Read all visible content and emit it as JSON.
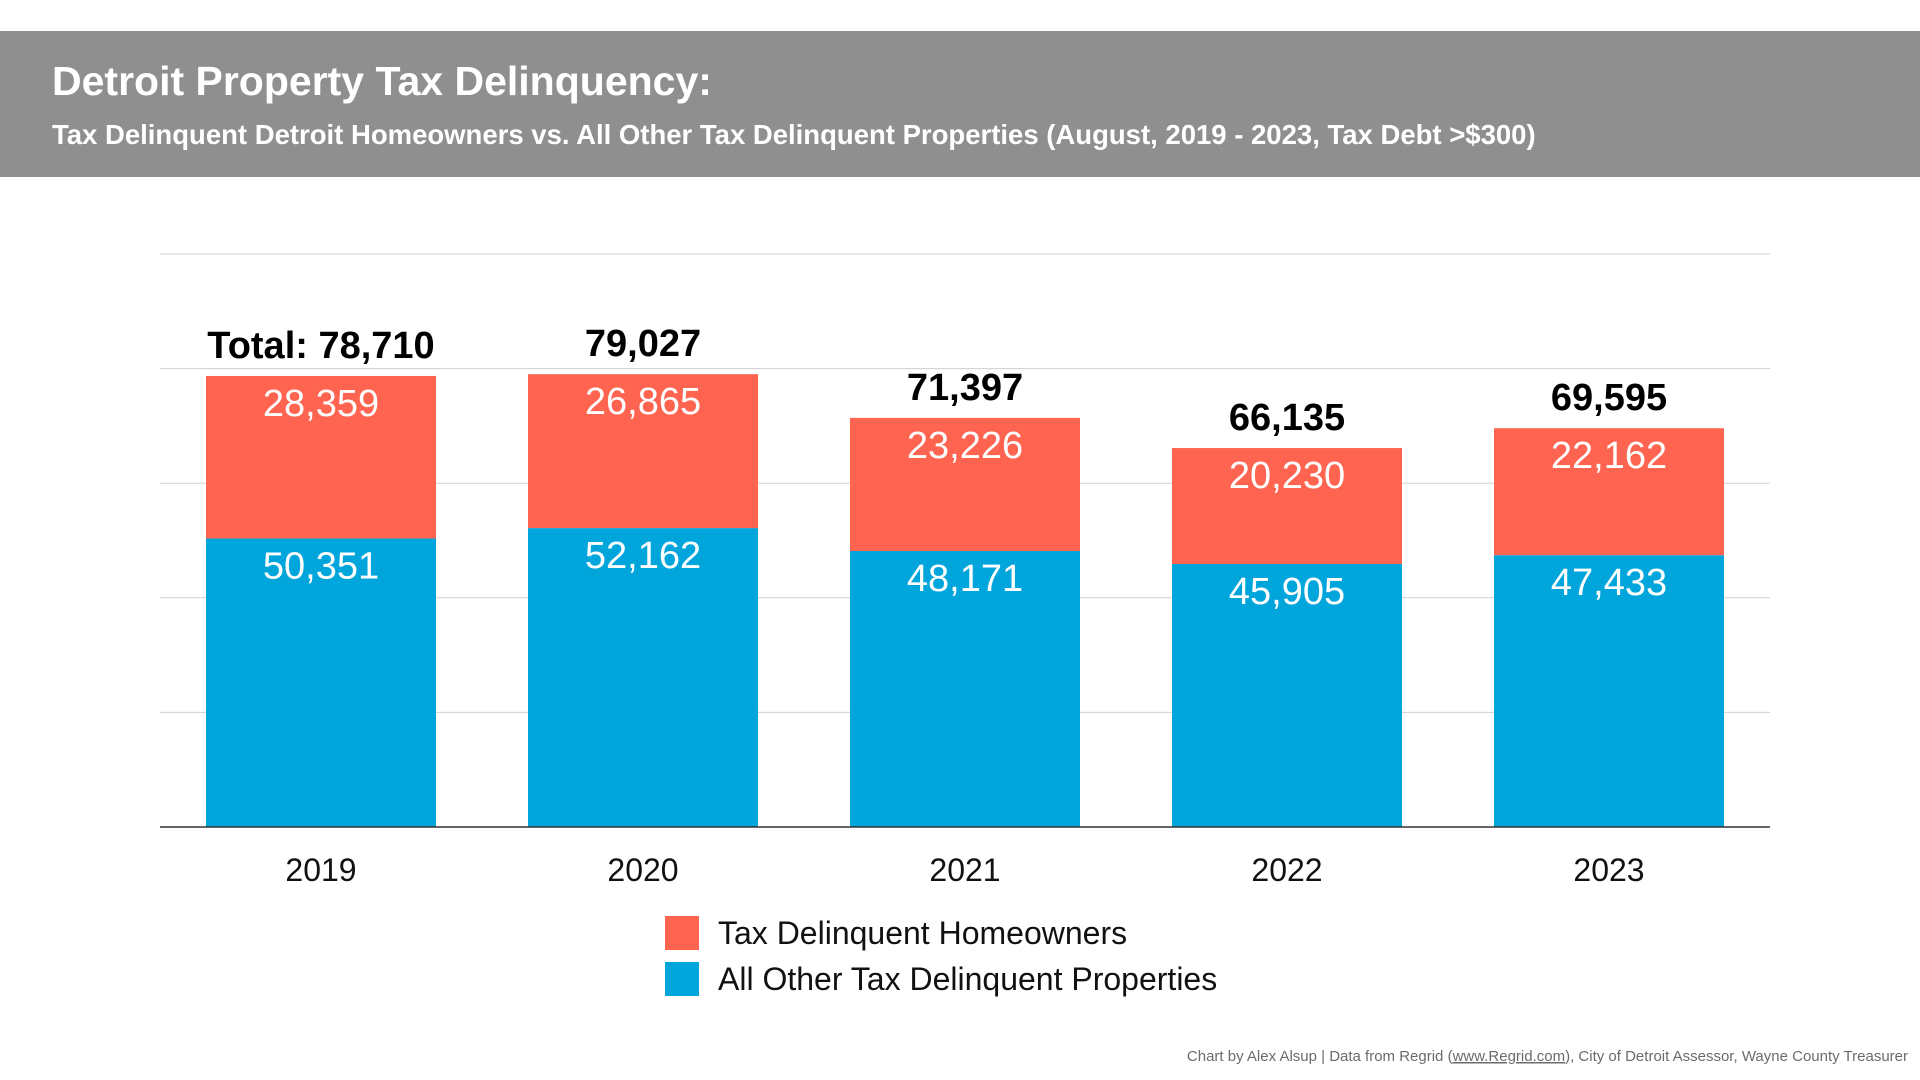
{
  "chart_data": {
    "type": "bar",
    "stacked": true,
    "title": "Detroit Property Tax Delinquency:",
    "subtitle": "Tax Delinquent Detroit Homeowners vs. All Other Tax Delinquent Properties (August, 2019 - 2023, Tax Debt >$300)",
    "categories": [
      "2019",
      "2020",
      "2021",
      "2022",
      "2023"
    ],
    "series": [
      {
        "name": "All Other Tax Delinquent Properties",
        "color": "#00A5DB",
        "values": [
          50351,
          52162,
          48171,
          45905,
          47433
        ],
        "labels": [
          "50,351",
          "52,162",
          "48,171",
          "45,905",
          "47,433"
        ]
      },
      {
        "name": "Tax Delinquent Homeowners",
        "color": "#FF6450",
        "values": [
          28359,
          26865,
          23226,
          20230,
          22162
        ],
        "labels": [
          "28,359",
          "26,865",
          "23,226",
          "20,230",
          "22,162"
        ]
      }
    ],
    "totals": [
      78710,
      79027,
      71397,
      66135,
      69595
    ],
    "total_labels": [
      "Total: 78,710",
      "79,027",
      "71,397",
      "66,135",
      "69,595"
    ],
    "ylim": [
      0,
      100000
    ],
    "ytick_step": 20000,
    "show_y_tick_labels": false,
    "grid": true,
    "legend_placement": "bottom-center",
    "legend": [
      {
        "label": "Tax Delinquent Homeowners",
        "color": "#FF6450"
      },
      {
        "label": "All Other Tax Delinquent Properties",
        "color": "#00A5DB"
      }
    ],
    "xlabel": "",
    "ylabel": ""
  },
  "header": {
    "background": "#8F8F8F"
  },
  "credit": {
    "prefix": "Chart by Alex Alsup | Data from Regrid (",
    "link": "www.Regrid.com",
    "suffix": "), City of Detroit Assessor, Wayne County Treasurer"
  }
}
